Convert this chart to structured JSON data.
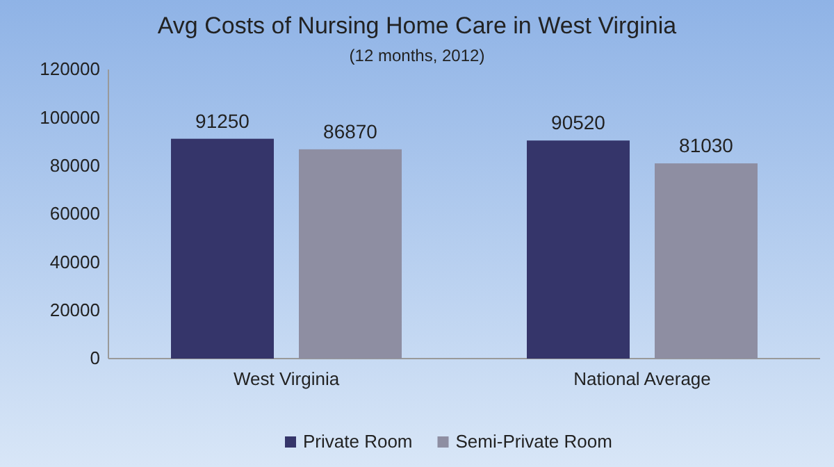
{
  "chart_data": {
    "type": "bar",
    "title": "Avg Costs of Nursing Home Care in West Virginia",
    "subtitle": "(12 months, 2012)",
    "categories": [
      "West Virginia",
      "National Average"
    ],
    "series": [
      {
        "name": "Private Room",
        "color": "#35356a",
        "values": [
          91250,
          90520
        ]
      },
      {
        "name": "Semi-Private Room",
        "color": "#8e8ea2",
        "values": [
          86870,
          81030
        ]
      }
    ],
    "ylim": [
      0,
      120000
    ],
    "yticks": [
      0,
      20000,
      40000,
      60000,
      80000,
      100000,
      120000
    ],
    "data_labels": true,
    "legend": "bottom",
    "grid": false
  }
}
